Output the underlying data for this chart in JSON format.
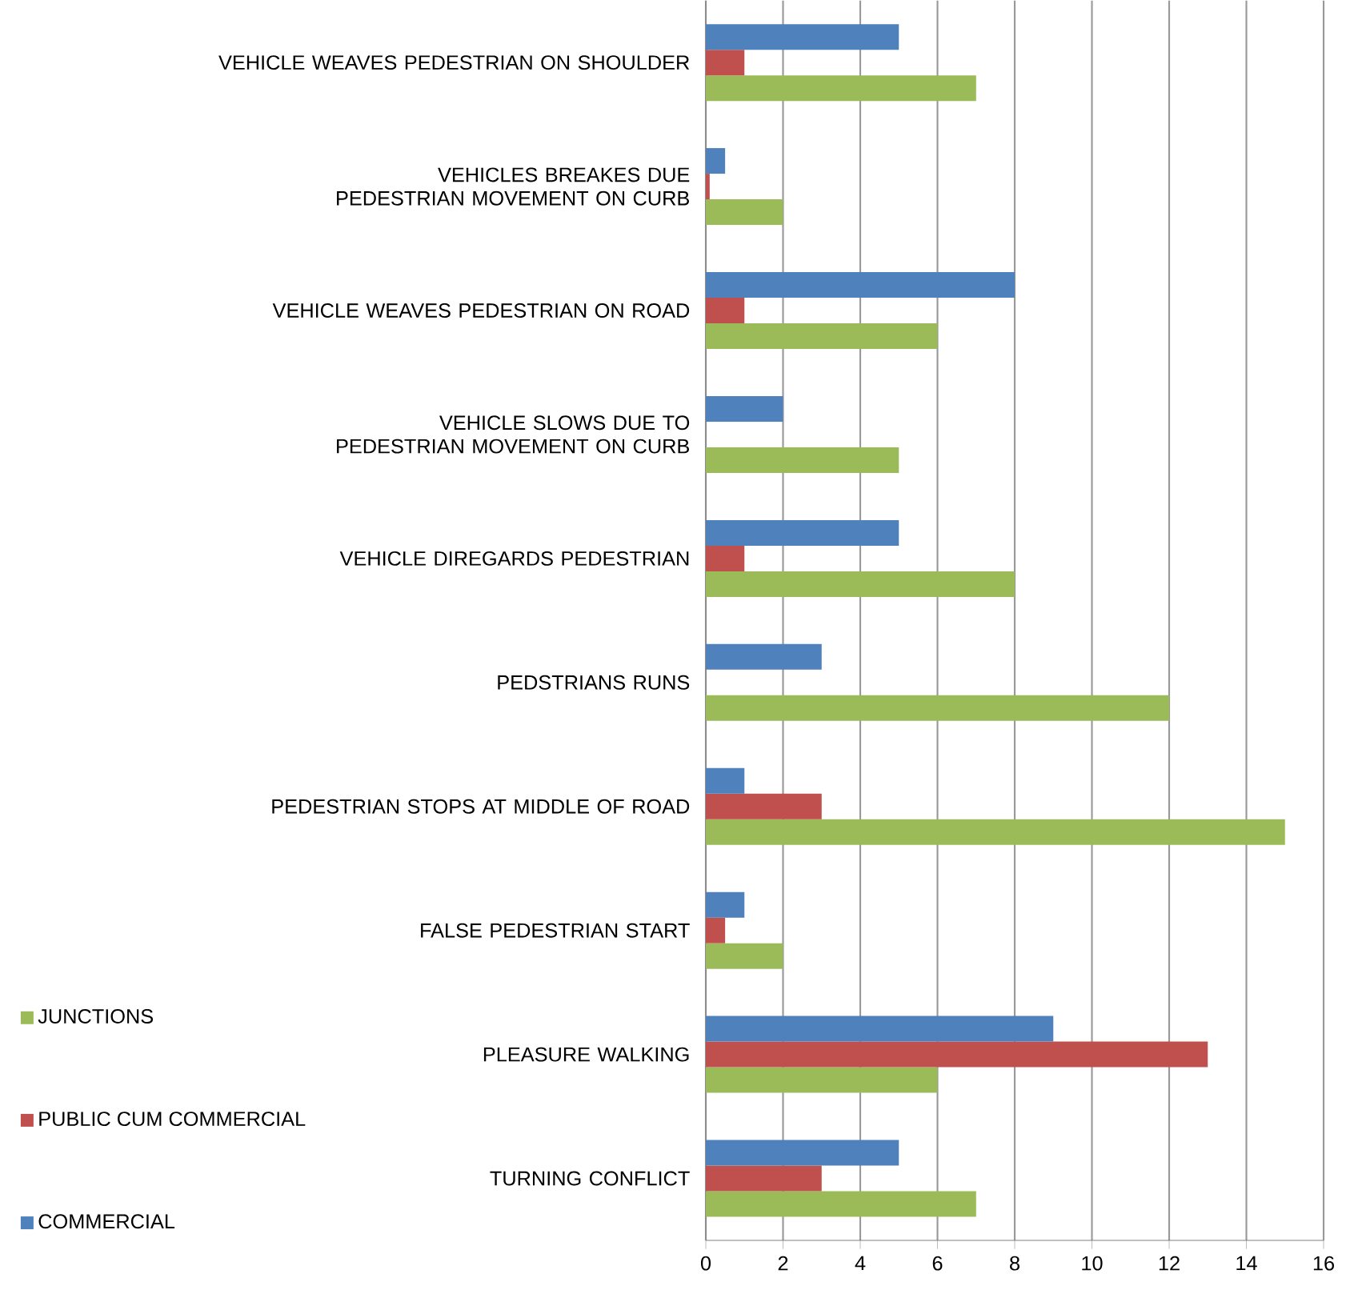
{
  "chart_data": {
    "type": "bar",
    "orientation": "horizontal",
    "categories": [
      "VEHICLE WEAVES PEDESTRIAN ON SHOULDER",
      "VEHICLES BREAKES DUE PEDESTRIAN MOVEMENT ON CURB",
      "VEHICLE WEAVES PEDESTRIAN ON ROAD",
      "VEHICLE SLOWS DUE TO PEDESTRIAN MOVEMENT ON CURB",
      "VEHICLE DIREGARDS PEDESTRIAN",
      "PEDSTRIANS RUNS",
      "PEDESTRIAN STOPS AT MIDDLE OF ROAD",
      "FALSE PEDESTRIAN START",
      "PLEASURE WALKING",
      "TURNING CONFLICT"
    ],
    "series": [
      {
        "name": "JUNCTIONS",
        "color": "#9bbb59",
        "values": [
          7,
          2,
          6,
          5,
          8,
          12,
          15,
          2,
          6,
          7
        ]
      },
      {
        "name": "PUBLIC CUM COMMERCIAL",
        "color": "#c0504d",
        "values": [
          1,
          0.1,
          1,
          0,
          1,
          0,
          3,
          0.5,
          13,
          3
        ]
      },
      {
        "name": "COMMERCIAL",
        "color": "#4f81bd",
        "values": [
          5,
          0.5,
          8,
          2,
          5,
          3,
          1,
          1,
          9,
          5
        ]
      }
    ],
    "xlim": [
      0,
      16
    ],
    "xticks": [
      0,
      2,
      4,
      6,
      8,
      10,
      12,
      14,
      16
    ],
    "grid": "x",
    "legend": "bottom left"
  }
}
